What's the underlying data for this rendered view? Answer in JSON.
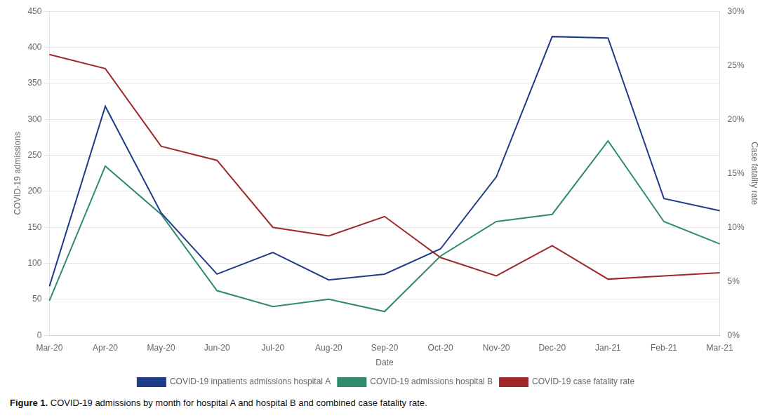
{
  "chart_data": {
    "type": "line",
    "x_label": "Date",
    "y_label": "COVID-19 admissions",
    "y2_label": "Case fatality rate",
    "annotations": [
      "Figure 1.",
      "COVID-19 admissions by month for hospital A and hospital B and combined case fatality rate."
    ],
    "categories": [
      "Mar-20",
      "Apr-20",
      "May-20",
      "Jun-20",
      "Jul-20",
      "Aug-20",
      "Sep-20",
      "Oct-20",
      "Nov-20",
      "Dec-20",
      "Jan-21",
      "Feb-21",
      "Mar-21"
    ],
    "series": [
      {
        "name": "COVID-19 inpatients admissions hospital A",
        "color": "#1F3C88",
        "values": [
          68,
          318,
          170,
          85,
          115,
          77,
          85,
          120,
          220,
          415,
          413,
          190,
          173
        ]
      },
      {
        "name": "COVID-19 admissions hospital B",
        "color": "#2E8B6B",
        "values": [
          48,
          235,
          168,
          62,
          40,
          50,
          33,
          110,
          158,
          168,
          270,
          158,
          127
        ]
      },
      {
        "name": "COVID-19 case fatality rate",
        "color": "#A0272A",
        "axis": "y2",
        "values": [
          0.26,
          0.247,
          0.175,
          0.162,
          0.1,
          0.092,
          0.11,
          0.072,
          0.055,
          0.083,
          0.052,
          0.055,
          0.058
        ]
      }
    ],
    "ylim": [
      0,
      450
    ],
    "yticks": [
      0,
      50,
      100,
      150,
      200,
      250,
      300,
      350,
      400,
      450
    ],
    "y2lim": [
      0,
      0.3
    ],
    "y2ticks": [
      {
        "value": 0.0,
        "label": "0%"
      },
      {
        "value": 0.05,
        "label": "5%"
      },
      {
        "value": 0.1,
        "label": "10%"
      },
      {
        "value": 0.15,
        "label": "15%"
      },
      {
        "value": 0.2,
        "label": "20%"
      },
      {
        "value": 0.25,
        "label": "25%"
      },
      {
        "value": 0.3,
        "label": "30%"
      }
    ],
    "grid": true,
    "legend": "bottom"
  }
}
